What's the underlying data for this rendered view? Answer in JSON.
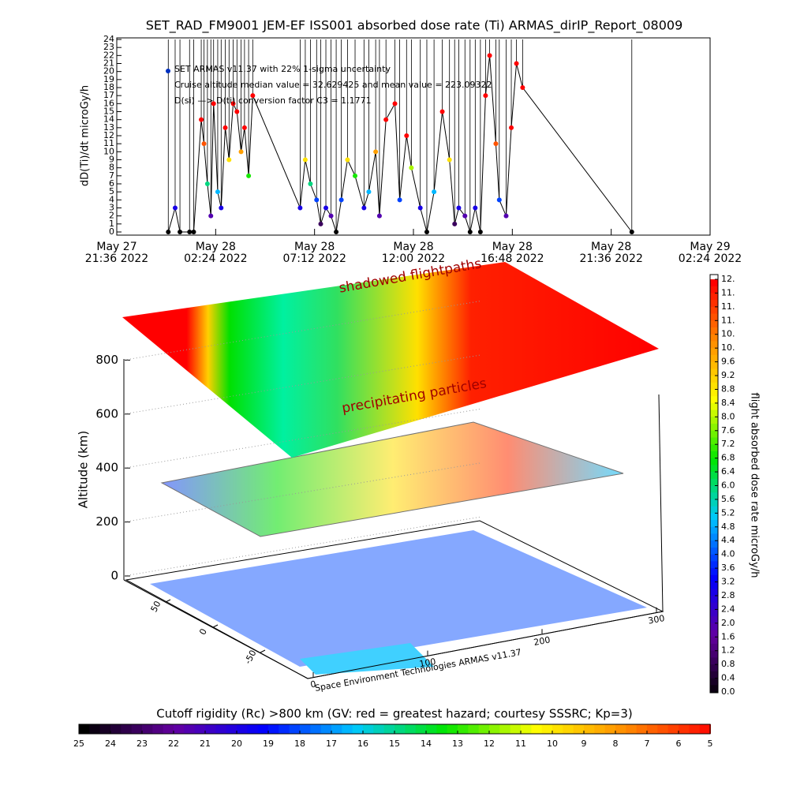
{
  "chart_data": [
    {
      "type": "line",
      "title": "SET_RAD_FM9001  JEM-EF ISS001 absorbed dose rate (Ti) ARMAS_dirIP_Report_08009",
      "ylabel": "dD(Ti)/dt microGy/h",
      "annotations": [
        "SET ARMAS v11.37 with 22% 1-sigma uncertainty",
        "Cruise altitude median value = 32.629425 and mean value = 223.09322",
        "D(si) —> D(ti) conversion factor C3 = 1.1771"
      ],
      "xlim": [
        "2022-05-27T21:36",
        "2022-05-29T02:24"
      ],
      "xticks": [
        {
          "value": "2022-05-27T21:36",
          "label": [
            "May 27",
            "21:36 2022"
          ]
        },
        {
          "value": "2022-05-28T02:24",
          "label": [
            "May 28",
            "02:24 2022"
          ]
        },
        {
          "value": "2022-05-28T07:12",
          "label": [
            "May 28",
            "07:12 2022"
          ]
        },
        {
          "value": "2022-05-28T12:00",
          "label": [
            "May 28",
            "12:00 2022"
          ]
        },
        {
          "value": "2022-05-28T16:48",
          "label": [
            "May 28",
            "16:48 2022"
          ]
        },
        {
          "value": "2022-05-28T21:36",
          "label": [
            "May 28",
            "21:36 2022"
          ]
        },
        {
          "value": "2022-05-29T02:24",
          "label": [
            "May 29",
            "02:24 2022"
          ]
        }
      ],
      "ylim": [
        0,
        24
      ],
      "yticks": [
        0,
        1,
        2,
        3,
        4,
        5,
        6,
        7,
        8,
        9,
        10,
        11,
        12,
        13,
        14,
        15,
        16,
        17,
        18,
        19,
        20,
        21,
        22,
        23,
        24
      ],
      "x": [
        "2022-05-28T00:06",
        "2022-05-28T00:26",
        "2022-05-28T00:40",
        "2022-05-28T01:08",
        "2022-05-28T01:20",
        "2022-05-28T01:42",
        "2022-05-28T01:50",
        "2022-05-28T02:00",
        "2022-05-28T02:10",
        "2022-05-28T02:18",
        "2022-05-28T02:30",
        "2022-05-28T02:40",
        "2022-05-28T02:52",
        "2022-05-28T03:03",
        "2022-05-28T03:15",
        "2022-05-28T03:26",
        "2022-05-28T03:38",
        "2022-05-28T03:48",
        "2022-05-28T04:00",
        "2022-05-28T04:12",
        "2022-05-28T06:30",
        "2022-05-28T06:45",
        "2022-05-28T07:00",
        "2022-05-28T07:18",
        "2022-05-28T07:30",
        "2022-05-28T07:45",
        "2022-05-28T08:00",
        "2022-05-28T08:15",
        "2022-05-28T08:30",
        "2022-05-28T08:48",
        "2022-05-28T09:10",
        "2022-05-28T09:36",
        "2022-05-28T09:50",
        "2022-05-28T10:10",
        "2022-05-28T10:21",
        "2022-05-28T10:40",
        "2022-05-28T11:06",
        "2022-05-28T11:20",
        "2022-05-28T11:40",
        "2022-05-28T11:54",
        "2022-05-28T12:20",
        "2022-05-28T12:39",
        "2022-05-28T13:00",
        "2022-05-28T13:24",
        "2022-05-28T13:45",
        "2022-05-28T14:00",
        "2022-05-28T14:12",
        "2022-05-28T14:30",
        "2022-05-28T14:45",
        "2022-05-28T15:00",
        "2022-05-28T15:15",
        "2022-05-28T15:30",
        "2022-05-28T15:42",
        "2022-05-28T16:00",
        "2022-05-28T16:10",
        "2022-05-28T16:30",
        "2022-05-28T16:45",
        "2022-05-28T17:00",
        "2022-05-28T17:18",
        "2022-05-28T22:36"
      ],
      "values": [
        0,
        3,
        0,
        0,
        0,
        14,
        11,
        6,
        2,
        16,
        5,
        3,
        13,
        9,
        16,
        15,
        10,
        13,
        7,
        17,
        3,
        9,
        6,
        4,
        1,
        3,
        2,
        0,
        4,
        9,
        7,
        3,
        5,
        10,
        2,
        14,
        16,
        4,
        12,
        8,
        3,
        0,
        5,
        15,
        9,
        1,
        3,
        2,
        0,
        3,
        0,
        17,
        22,
        11,
        4,
        2,
        13,
        21,
        18,
        0
      ],
      "color": "#000000"
    },
    {
      "type": "surface3d",
      "zlabel": "Altitude (km)",
      "zticks": [
        0,
        200,
        400,
        600,
        800
      ],
      "xticks": [
        0,
        100,
        200,
        300
      ],
      "yticks": [
        -50,
        0,
        50
      ],
      "annotations": [
        "shadowed flightpaths",
        "precipitating particles"
      ],
      "credit": "Space Environment Technologies ARMAS v11.37"
    },
    {
      "type": "colorbar",
      "label": "flight absorbed dose rate microGy/h",
      "lim": [
        0,
        12
      ],
      "ticks": [
        {
          "value": 0,
          "label": "0.0"
        },
        {
          "value": 0.4,
          "label": "0.4"
        },
        {
          "value": 0.8,
          "label": "0.8"
        },
        {
          "value": 1.2,
          "label": "1.2"
        },
        {
          "value": 1.6,
          "label": "1.6"
        },
        {
          "value": 2,
          "label": "2.0"
        },
        {
          "value": 2.4,
          "label": "2.4"
        },
        {
          "value": 2.8,
          "label": "2.8"
        },
        {
          "value": 3.2,
          "label": "3.2"
        },
        {
          "value": 3.6,
          "label": "3.6"
        },
        {
          "value": 4,
          "label": "4.0"
        },
        {
          "value": 4.4,
          "label": "4.4"
        },
        {
          "value": 4.8,
          "label": "4.8"
        },
        {
          "value": 5.2,
          "label": "5.2"
        },
        {
          "value": 5.6,
          "label": "5.6"
        },
        {
          "value": 6,
          "label": "6.0"
        },
        {
          "value": 6.4,
          "label": "6.4"
        },
        {
          "value": 6.8,
          "label": "6.8"
        },
        {
          "value": 7.2,
          "label": "7.2"
        },
        {
          "value": 7.6,
          "label": "7.6"
        },
        {
          "value": 8,
          "label": "8.0"
        },
        {
          "value": 8.4,
          "label": "8.4"
        },
        {
          "value": 8.8,
          "label": "8.8"
        },
        {
          "value": 9.2,
          "label": "9.2"
        },
        {
          "value": 9.6,
          "label": "9.6"
        },
        {
          "value": 10,
          "label": "10."
        },
        {
          "value": 10.4,
          "label": "10."
        },
        {
          "value": 10.8,
          "label": "11."
        },
        {
          "value": 11.2,
          "label": "11."
        },
        {
          "value": 11.6,
          "label": "11."
        },
        {
          "value": 12,
          "label": "12."
        }
      ]
    },
    {
      "type": "colorbar",
      "label": "Cutoff rigidity (Rc) >800 km (GV: red = greatest hazard; courtesy SSSRC; Kp=3)",
      "lim": [
        25,
        5
      ],
      "ticks": [
        25,
        24,
        23,
        22,
        21,
        20,
        19,
        18,
        17,
        16,
        15,
        14,
        13,
        12,
        11,
        10,
        9,
        8,
        7,
        6,
        5
      ]
    }
  ]
}
